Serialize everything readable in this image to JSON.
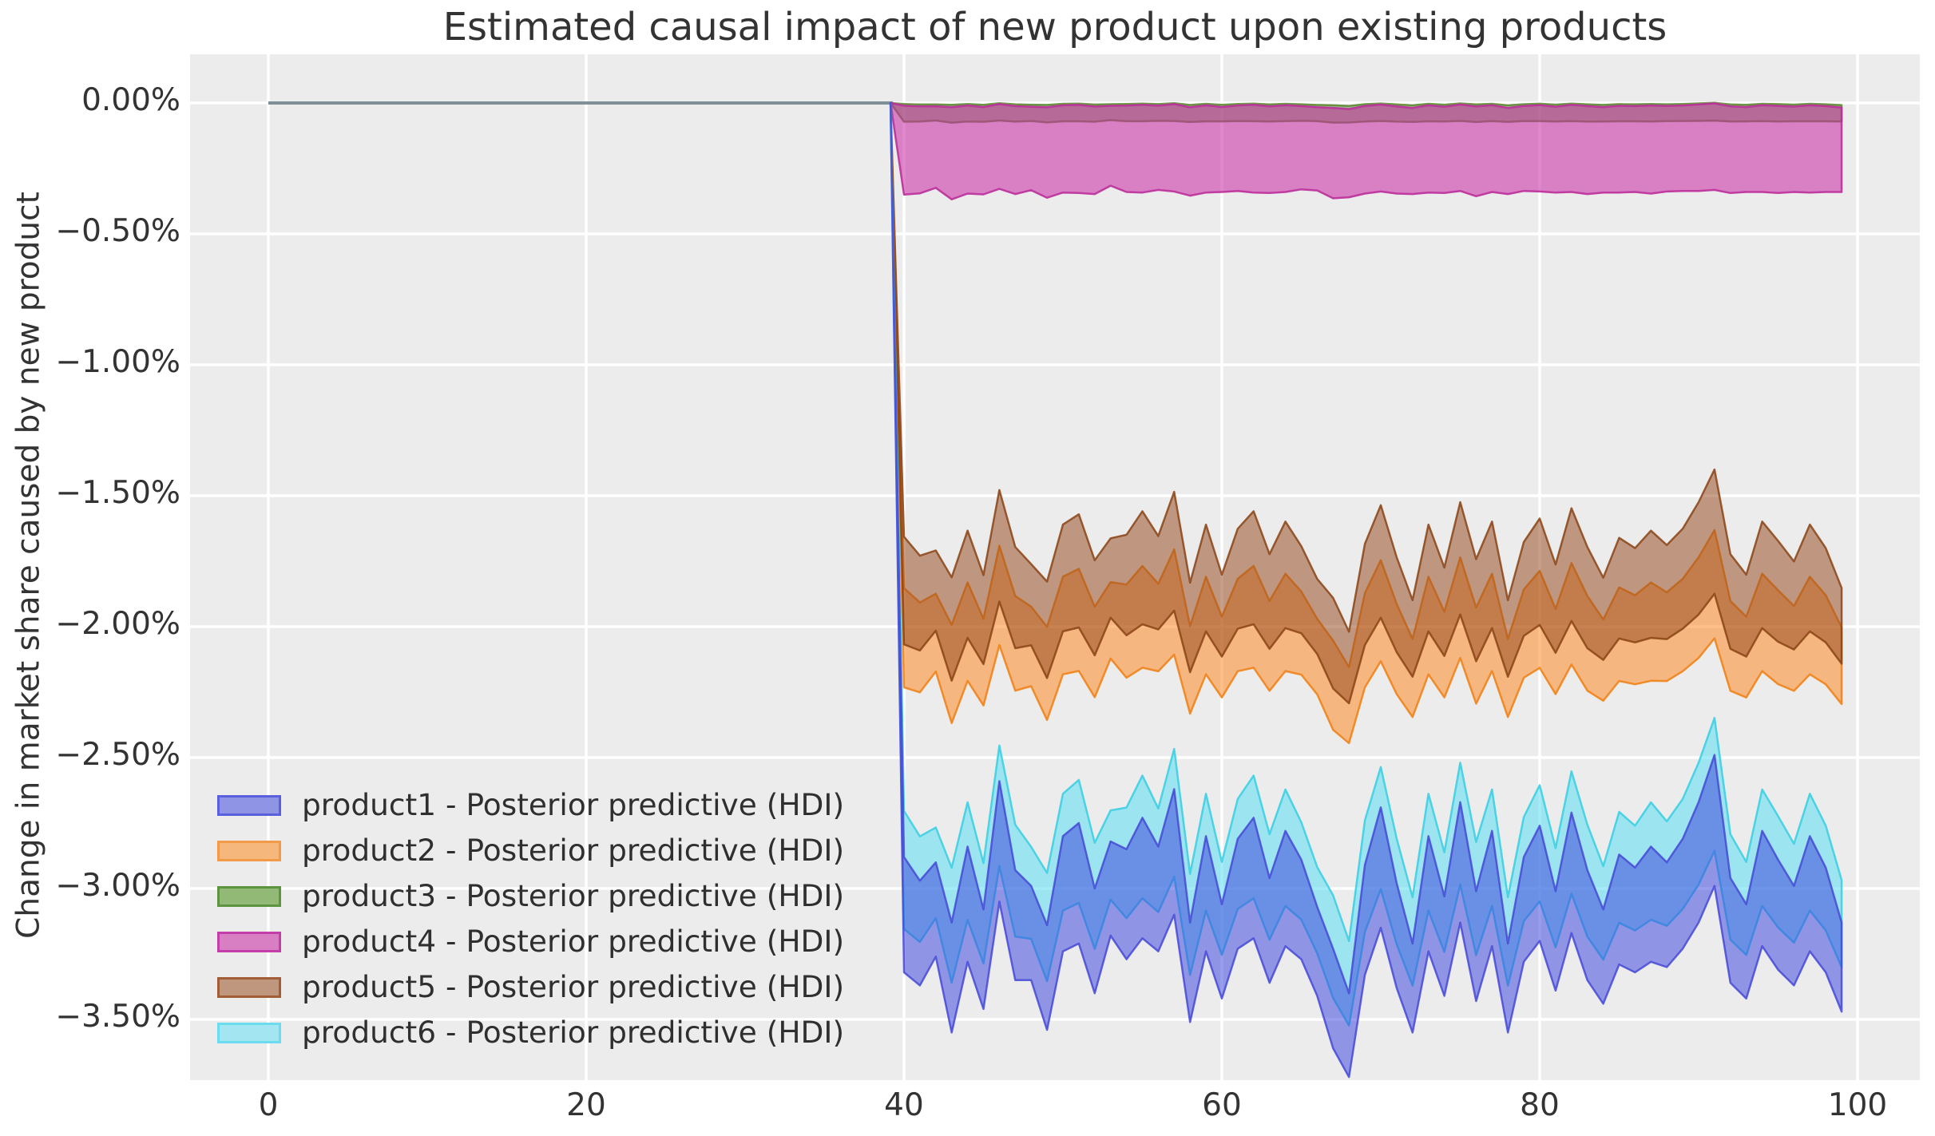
{
  "chart_data": {
    "type": "area",
    "subtype": "posterior-predictive-hdi-bands",
    "title": "Estimated causal impact of new product upon existing products",
    "ylabel": "Change in market share caused by new product",
    "xlabel": "",
    "grid": true,
    "legend_position": "lower left",
    "background_color": "#ececec",
    "gridline_color": "#ffffff",
    "text_color": "#333333",
    "x_ticks": [
      0,
      20,
      40,
      60,
      80,
      100
    ],
    "y_ticks": [
      {
        "label": "0.00%",
        "value": 0.0
      },
      {
        "label": "−0.50%",
        "value": -0.5
      },
      {
        "label": "−1.00%",
        "value": -1.0
      },
      {
        "label": "−1.50%",
        "value": -1.5
      },
      {
        "label": "−2.00%",
        "value": -2.0
      },
      {
        "label": "−2.50%",
        "value": -2.5
      },
      {
        "label": "−3.00%",
        "value": -3.0
      },
      {
        "label": "−3.50%",
        "value": -3.5
      }
    ],
    "xlim": [
      -4.9,
      103.9
    ],
    "ylim": [
      -3.73,
      0.2
    ],
    "pre_period": {
      "x_start": 0,
      "x_end": 39,
      "value": 0.0,
      "line_color": "#7f9097"
    },
    "intervention_x": 40,
    "post_x_start": 40,
    "post_x_end": 99,
    "band_start_x": 39.15,
    "wiggle_w": [
      0.02,
      -0.05,
      0.04,
      -0.22,
      0.06,
      -0.15,
      0.3,
      -0.02,
      -0.05,
      -0.22,
      0.1,
      0.14,
      -0.08,
      0.12,
      0.06,
      0.16,
      0.08,
      0.26,
      -0.2,
      0.1,
      -0.12,
      0.1,
      0.16,
      -0.04,
      0.12,
      0.04,
      -0.12,
      -0.3,
      -0.44,
      0.0,
      0.2,
      -0.06,
      -0.26,
      0.1,
      -0.1,
      0.22,
      -0.1,
      0.12,
      -0.26,
      0.04,
      0.14,
      -0.08,
      0.18,
      -0.02,
      -0.14,
      0.04,
      0.0,
      0.06,
      0.02,
      0.1,
      0.22,
      0.38,
      -0.04,
      -0.12,
      0.12,
      0.02,
      -0.06,
      0.1,
      0.0,
      -0.18
    ],
    "wiggle_v": [
      0.04,
      0.0,
      -0.04,
      0.02,
      0.04,
      -0.02,
      0.06,
      0.02,
      -0.04,
      0.0,
      0.04,
      0.06,
      0.0,
      -0.04,
      0.02,
      0.06,
      0.0,
      0.08,
      -0.02,
      0.04,
      -0.04,
      0.02,
      0.06,
      0.0,
      0.04,
      -0.02,
      -0.06,
      -0.02,
      -0.08,
      0.02,
      0.06,
      0.0,
      -0.06,
      0.04,
      -0.02,
      0.06,
      0.02,
      0.04,
      -0.06,
      0.0,
      0.04,
      -0.02,
      0.06,
      0.02,
      -0.04,
      0.02,
      0.0,
      0.04,
      0.0,
      0.02,
      0.06,
      0.1,
      0.0,
      -0.04,
      0.04,
      0.02,
      -0.02,
      0.04,
      0.0,
      -0.06
    ],
    "series": [
      {
        "id": "product1",
        "name": "product1 - Posterior predictive (HDI)",
        "upper_base": -2.92,
        "upper_w": 1.0,
        "upper_v": 0.5,
        "lower_base": -3.32,
        "lower_w": 1.0,
        "lower_v": -0.5,
        "fill": "#3c44dd",
        "fill_opacity": 0.52,
        "stroke": "#4549d6",
        "stroke_opacity": 0.85,
        "legend_fill": "#9094e5",
        "legend_border": "#5a5fdd"
      },
      {
        "id": "product2",
        "name": "product2 - Posterior predictive (HDI)",
        "upper_base": -1.88,
        "upper_w": 0.55,
        "upper_v": 0.4,
        "lower_base": -2.22,
        "lower_w": 0.62,
        "lower_v": -0.6,
        "fill": "#fd8b26",
        "fill_opacity": 0.55,
        "stroke": "#f07f12",
        "stroke_opacity": 0.85,
        "legend_fill": "#f5b77c",
        "legend_border": "#f39a4a"
      },
      {
        "id": "product3",
        "name": "product3 - Posterior predictive (HDI)",
        "upper_base": -0.005,
        "upper_w": 0.01,
        "upper_v": 0.02,
        "lower_base": -0.07,
        "lower_w": 0.02,
        "lower_v": -0.05,
        "fill": "#4a8a28",
        "fill_opacity": 0.5,
        "stroke": "#527c22",
        "stroke_opacity": 0.78,
        "legend_fill": "#93b977",
        "legend_border": "#5d9440"
      },
      {
        "id": "product4",
        "name": "product4 - Posterior predictive (HDI)",
        "upper_base": -0.012,
        "upper_w": 0.02,
        "upper_v": 0.03,
        "lower_base": -0.34,
        "lower_w": 0.1,
        "lower_v": -0.3,
        "fill": "#c92aa4",
        "fill_opacity": 0.56,
        "stroke": "#bb2f9b",
        "stroke_opacity": 0.9,
        "legend_fill": "#d87fc4",
        "legend_border": "#c43ea8"
      },
      {
        "id": "product5",
        "name": "product5 - Posterior predictive (HDI)",
        "upper_base": -1.7,
        "upper_w": 0.58,
        "upper_v": 0.8,
        "lower_base": -2.06,
        "lower_w": 0.62,
        "lower_v": -0.5,
        "fill": "#96491c",
        "fill_opacity": 0.52,
        "stroke": "#8a4315",
        "stroke_opacity": 0.85,
        "legend_fill": "#bf977f",
        "legend_border": "#a05d36"
      },
      {
        "id": "product6",
        "name": "product6 - Posterior predictive (HDI)",
        "upper_base": -2.76,
        "upper_w": 0.82,
        "upper_v": 1.0,
        "lower_base": -3.16,
        "lower_w": 0.88,
        "lower_v": -0.3,
        "fill": "#67dff2",
        "fill_opacity": 0.6,
        "stroke": "#3ecfe3",
        "stroke_opacity": 0.9,
        "legend_fill": "#a3e5f0",
        "legend_border": "#6adcee"
      }
    ],
    "paint_order": [
      "product3",
      "product4",
      "product2",
      "product5",
      "product6",
      "product1"
    ]
  }
}
